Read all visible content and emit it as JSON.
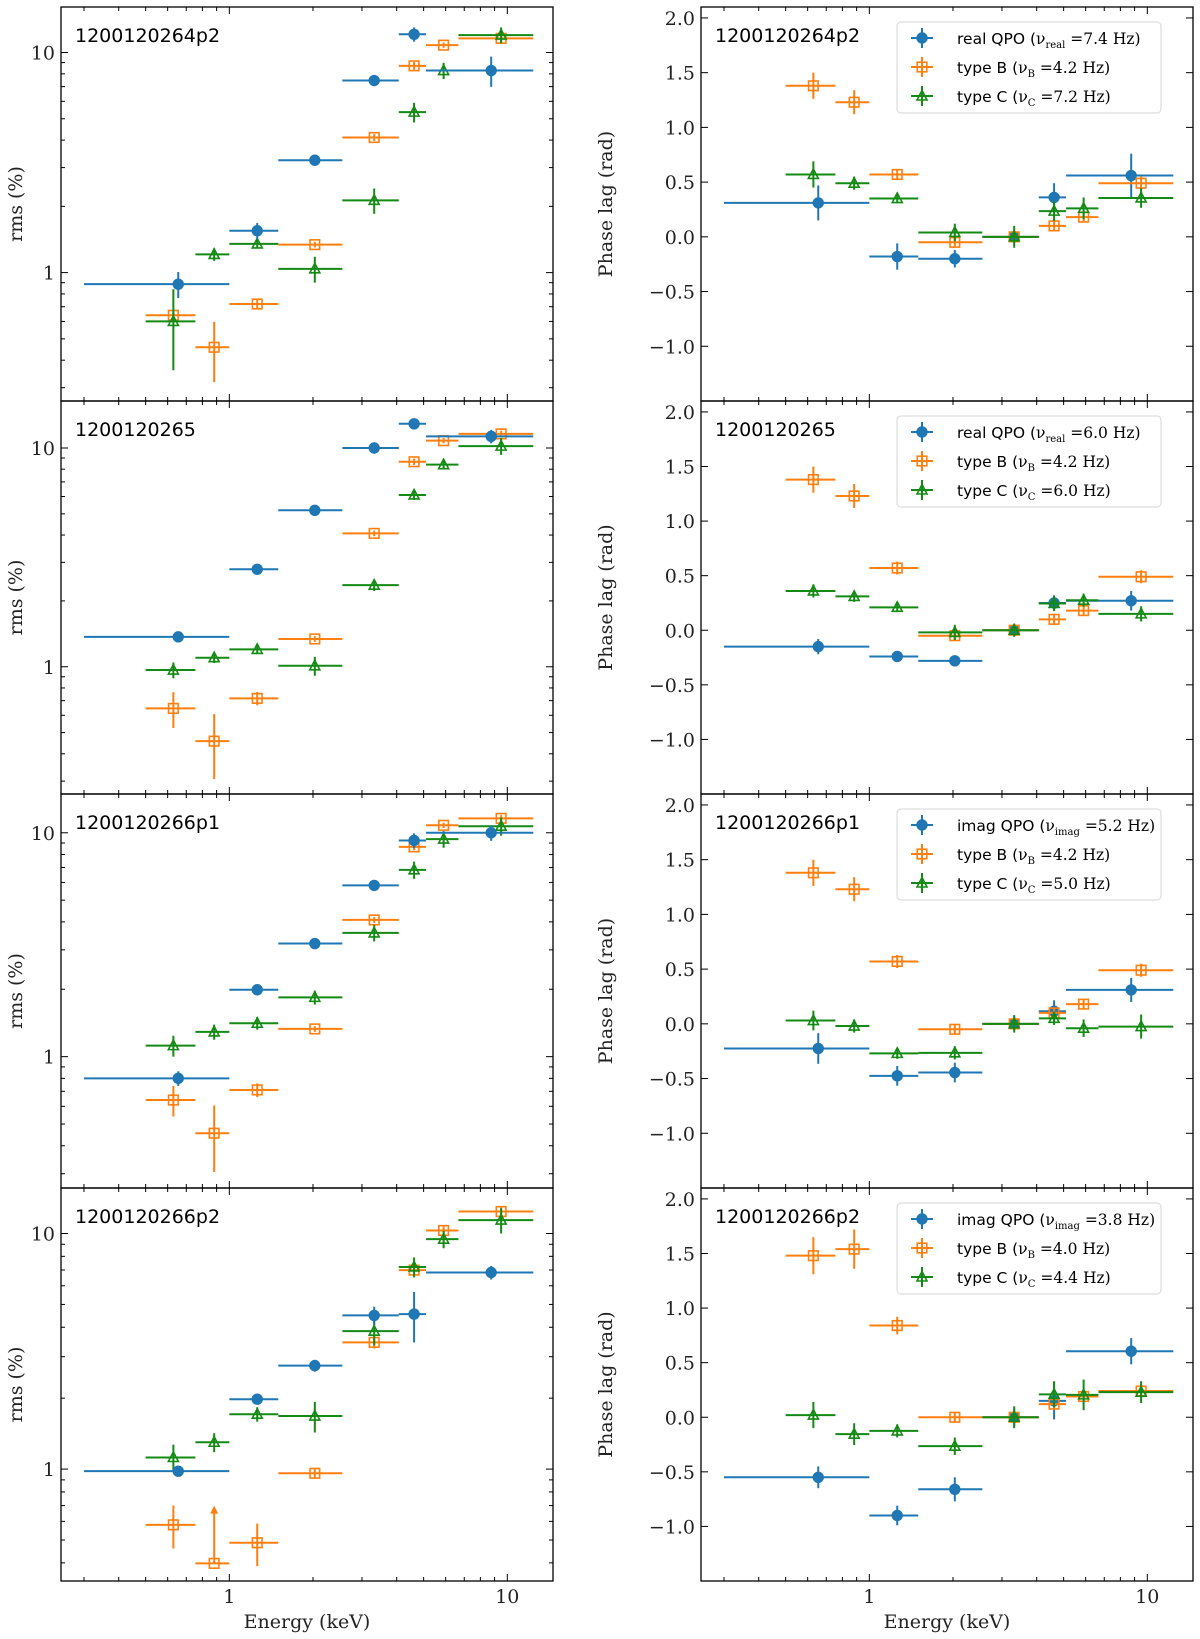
{
  "colors": {
    "blue": "#1f77b4",
    "orange": "#ff7f0e",
    "green": "#138a13"
  },
  "chart_data": {
    "type": "scatter",
    "description": "Fractional rms amplitude (left) and phase lag (right) vs energy for four observations; errorbar markers with energy-bin x error bars",
    "xlabel": "Energy (keV)",
    "xscale": "log",
    "xlim": [
      0.248,
      14.6
    ],
    "x_ticklabels": [
      "1",
      "10"
    ],
    "rms_ylabel": "rms (%)",
    "lag_ylabel": "Phase lag (rad)",
    "rms_yscale": "log",
    "rms_ticklabels": [
      "1",
      "10"
    ],
    "lag_ticks": [
      2.0,
      1.5,
      1.0,
      0.5,
      0.0,
      -0.5,
      -1.0
    ],
    "lag_ticklabels": [
      "2.0",
      "1.5",
      "1.0",
      "0.5",
      "0.0",
      "−0.5",
      "−1.0"
    ],
    "bins_qpo": [
      [
        0.3,
        1.0
      ],
      [
        1.0,
        1.5
      ],
      [
        1.5,
        2.55
      ],
      [
        2.55,
        4.07
      ],
      [
        4.07,
        5.1
      ],
      [
        5.1,
        12.4
      ]
    ],
    "x_qpo": [
      0.655,
      1.26,
      2.03,
      3.32,
      4.62,
      8.75
    ],
    "bins_bc": [
      [
        0.5,
        0.755
      ],
      [
        0.755,
        1.0
      ],
      [
        1.0,
        1.5
      ],
      [
        1.5,
        2.55
      ],
      [
        2.55,
        4.07
      ],
      [
        4.07,
        5.1
      ],
      [
        5.1,
        6.67
      ],
      [
        6.67,
        12.4
      ]
    ],
    "x_bc": [
      0.629,
      0.882,
      1.26,
      2.03,
      3.32,
      4.62,
      5.9,
      9.5
    ],
    "panels": [
      {
        "label": "1200120264p2",
        "rms_ylim": [
          0.261,
          16.1
        ],
        "lag_ylim": [
          -1.5,
          2.1
        ],
        "legend": [
          {
            "prefix": "real QPO (",
            "nu": "ν",
            "sub": "real",
            "suffix": " =7.4 Hz)"
          },
          {
            "prefix": "type B (",
            "nu": "ν",
            "sub": "B",
            "suffix": " =4.2 Hz)"
          },
          {
            "prefix": "type C (",
            "nu": "ν",
            "sub": "C",
            "suffix": " =7.2 Hz)"
          }
        ],
        "series": [
          {
            "name": "real QPO",
            "color": "blue",
            "marker": "circle",
            "rms": [
              0.886,
              1.55,
              3.24,
              7.46,
              12.1,
              8.28
            ],
            "rms_err": [
              0.12,
              0.13,
              0.15,
              0.35,
              0.9,
              1.3
            ],
            "lag": [
              0.31,
              -0.18,
              -0.2,
              0.0,
              0.36,
              0.56
            ],
            "lag_err": [
              0.16,
              0.12,
              0.08,
              0.05,
              0.13,
              0.2
            ]
          },
          {
            "name": "type B",
            "color": "orange",
            "marker": "square",
            "rms": [
              0.64,
              0.458,
              0.72,
              1.34,
              4.11,
              8.7,
              10.8,
              11.6
            ],
            "rms_err": [
              0.03,
              0.14,
              0.04,
              0.04,
              0.15,
              0.35,
              0.3,
              0.35
            ],
            "lag": [
              1.38,
              1.23,
              0.57,
              -0.05,
              0.0,
              0.1,
              0.18,
              0.49
            ],
            "lag_err": [
              0.12,
              0.11,
              0.05,
              0.04,
              0.03,
              0.04,
              0.04,
              0.06
            ]
          },
          {
            "name": "type C",
            "color": "green",
            "marker": "triangle",
            "rms": [
              0.6,
              1.21,
              1.35,
              1.04,
              2.13,
              5.36,
              8.28,
              12.0
            ],
            "rms_err": [
              0.24,
              0.08,
              0.06,
              0.14,
              0.28,
              0.55,
              0.7,
              1.0
            ],
            "lag": [
              0.57,
              0.49,
              0.35,
              0.04,
              0.0,
              0.235,
              0.26,
              0.355
            ],
            "lag_err": [
              0.12,
              0.06,
              0.04,
              0.08,
              0.1,
              0.09,
              0.1,
              0.09
            ]
          }
        ]
      },
      {
        "label": "1200120265",
        "rms_ylim": [
          0.262,
          16.4
        ],
        "lag_ylim": [
          -1.5,
          2.1
        ],
        "legend": [
          {
            "prefix": "real QPO (",
            "nu": "ν",
            "sub": "real",
            "suffix": " =6.0 Hz)"
          },
          {
            "prefix": "type B (",
            "nu": "ν",
            "sub": "B",
            "suffix": " =4.2 Hz)"
          },
          {
            "prefix": "type C (",
            "nu": "ν",
            "sub": "C",
            "suffix": " =6.0 Hz)"
          }
        ],
        "series": [
          {
            "name": "real QPO",
            "color": "blue",
            "marker": "circle",
            "rms": [
              1.37,
              2.79,
              5.19,
              10.0,
              12.9,
              11.3
            ],
            "rms_err": [
              0.04,
              0.08,
              0.15,
              0.3,
              0.7,
              0.8
            ],
            "lag": [
              -0.15,
              -0.24,
              -0.28,
              0.0,
              0.25,
              0.27
            ],
            "lag_err": [
              0.07,
              0.05,
              0.03,
              0.03,
              0.07,
              0.09
            ]
          },
          {
            "name": "type B",
            "color": "orange",
            "marker": "square",
            "rms": [
              0.645,
              0.457,
              0.717,
              1.34,
              4.07,
              8.65,
              10.8,
              11.6
            ],
            "rms_err": [
              0.12,
              0.15,
              0.05,
              0.04,
              0.12,
              0.3,
              0.3,
              0.4
            ],
            "lag": [
              1.38,
              1.23,
              0.57,
              -0.05,
              0.0,
              0.1,
              0.18,
              0.49
            ],
            "lag_err": [
              0.12,
              0.11,
              0.06,
              0.04,
              0.03,
              0.04,
              0.04,
              0.06
            ]
          },
          {
            "name": "type C",
            "color": "green",
            "marker": "triangle",
            "rms": [
              0.966,
              1.1,
              1.2,
              1.01,
              2.36,
              6.1,
              8.39,
              10.2
            ],
            "rms_err": [
              0.08,
              0.06,
              0.05,
              0.1,
              0.14,
              0.3,
              0.35,
              0.9
            ],
            "lag": [
              0.36,
              0.31,
              0.21,
              -0.02,
              0.0,
              0.245,
              0.275,
              0.15
            ],
            "lag_err": [
              0.06,
              0.05,
              0.04,
              0.07,
              0.06,
              0.07,
              0.06,
              0.07
            ]
          }
        ]
      },
      {
        "label": "1200120266p1",
        "rms_ylim": [
          0.259,
          14.9
        ],
        "lag_ylim": [
          -1.5,
          2.1
        ],
        "legend": [
          {
            "prefix": "imag QPO (",
            "nu": "ν",
            "sub": "imag",
            "suffix": " =5.2 Hz)"
          },
          {
            "prefix": "type B (",
            "nu": "ν",
            "sub": "B",
            "suffix": " =4.2 Hz)"
          },
          {
            "prefix": "type C (",
            "nu": "ν",
            "sub": "C",
            "suffix": " =5.0 Hz)"
          }
        ],
        "series": [
          {
            "name": "imag QPO",
            "color": "blue",
            "marker": "circle",
            "rms": [
              0.8,
              1.99,
              3.2,
              5.82,
              9.24,
              10.0
            ],
            "rms_err": [
              0.06,
              0.08,
              0.1,
              0.2,
              0.7,
              0.8
            ],
            "lag": [
              -0.225,
              -0.475,
              -0.445,
              0.0,
              0.115,
              0.31
            ],
            "lag_err": [
              0.14,
              0.09,
              0.09,
              0.06,
              0.1,
              0.11
            ]
          },
          {
            "name": "type B",
            "color": "orange",
            "marker": "square",
            "rms": [
              0.64,
              0.455,
              0.71,
              1.33,
              4.08,
              8.65,
              10.8,
              11.6
            ],
            "rms_err": [
              0.1,
              0.15,
              0.05,
              0.04,
              0.12,
              0.3,
              0.3,
              0.4
            ],
            "lag": [
              1.38,
              1.23,
              0.57,
              -0.05,
              0.0,
              0.1,
              0.18,
              0.49
            ],
            "lag_err": [
              0.12,
              0.11,
              0.06,
              0.04,
              0.03,
              0.04,
              0.04,
              0.06
            ]
          },
          {
            "name": "type C",
            "color": "green",
            "marker": "triangle",
            "rms": [
              1.12,
              1.29,
              1.41,
              1.84,
              3.57,
              6.83,
              9.37,
              10.7
            ],
            "rms_err": [
              0.12,
              0.1,
              0.09,
              0.13,
              0.3,
              0.6,
              0.8,
              1.0
            ],
            "lag": [
              0.03,
              -0.02,
              -0.27,
              -0.265,
              0.0,
              0.05,
              -0.04,
              -0.025
            ],
            "lag_err": [
              0.09,
              0.06,
              0.05,
              0.06,
              0.08,
              0.06,
              0.08,
              0.11
            ]
          }
        ]
      },
      {
        "label": "1200120266p2",
        "rms_ylim": [
          0.335,
          15.6
        ],
        "lag_ylim": [
          -1.5,
          2.1
        ],
        "legend": [
          {
            "prefix": "imag QPO (",
            "nu": "ν",
            "sub": "imag",
            "suffix": " =3.8 Hz)"
          },
          {
            "prefix": "type B (",
            "nu": "ν",
            "sub": "B",
            "suffix": " =4.0 Hz)"
          },
          {
            "prefix": "type C (",
            "nu": "ν",
            "sub": "C",
            "suffix": " =4.4 Hz)"
          }
        ],
        "series": [
          {
            "name": "imag QPO",
            "color": "blue",
            "marker": "circle",
            "rms": [
              0.98,
              1.98,
              2.75,
              4.49,
              4.55,
              6.83
            ],
            "rms_err": [
              0.05,
              0.1,
              0.16,
              0.4,
              1.1,
              0.45
            ],
            "lag": [
              -0.55,
              -0.9,
              -0.66,
              0.0,
              0.15,
              0.605
            ],
            "lag_err": [
              0.1,
              0.09,
              0.11,
              0.08,
              0.17,
              0.12
            ]
          },
          {
            "name": "type B",
            "color": "orange",
            "marker": "square",
            "rms": [
              0.58,
              0.398,
              0.487,
              0.96,
              3.45,
              6.99,
              10.3,
              12.4
            ],
            "rms_err": [
              0.12,
              0.0,
              0.1,
              0.04,
              0.2,
              0.3,
              0.4,
              0.5
            ],
            "lower_limit_index": 1,
            "lower_limit_to": 0.7,
            "lag": [
              1.48,
              1.54,
              0.84,
              0.0,
              0.0,
              0.12,
              0.19,
              0.24
            ],
            "lag_err": [
              0.17,
              0.18,
              0.08,
              0.04,
              0.03,
              0.04,
              0.04,
              0.05
            ]
          },
          {
            "name": "type C",
            "color": "green",
            "marker": "triangle",
            "rms": [
              1.12,
              1.3,
              1.71,
              1.68,
              3.85,
              7.21,
              9.46,
              11.4
            ],
            "rms_err": [
              0.15,
              0.12,
              0.12,
              0.25,
              0.5,
              0.7,
              0.8,
              1.4
            ],
            "lag": [
              0.02,
              -0.155,
              -0.125,
              -0.265,
              0.0,
              0.21,
              0.205,
              0.23
            ],
            "lag_err": [
              0.12,
              0.1,
              0.06,
              0.08,
              0.1,
              0.12,
              0.14,
              0.1
            ]
          }
        ]
      }
    ]
  }
}
